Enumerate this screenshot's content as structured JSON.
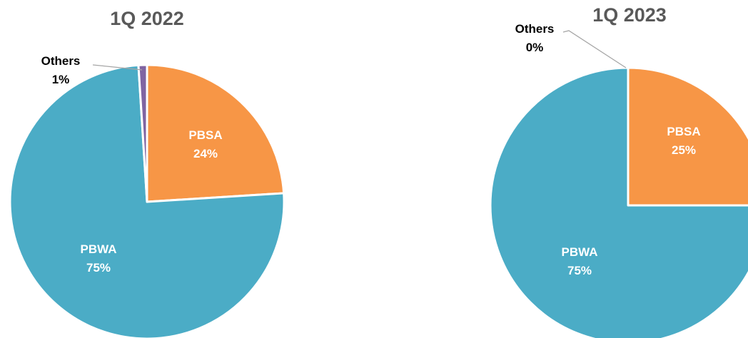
{
  "chart_data": [
    {
      "type": "pie",
      "title": "1Q 2022",
      "slices": [
        {
          "name": "PBSA",
          "value": 24,
          "label": "24%",
          "color": "#F79646"
        },
        {
          "name": "PBWA",
          "value": 75,
          "label": "75%",
          "color": "#4BACC6"
        },
        {
          "name": "Others",
          "value": 1,
          "label": "1%",
          "color": "#8064A2"
        }
      ],
      "legend": "none",
      "start_angle_deg": 0,
      "direction": "clockwise"
    },
    {
      "type": "pie",
      "title": "1Q 2023",
      "slices": [
        {
          "name": "PBSA",
          "value": 25,
          "label": "25%",
          "color": "#F79646"
        },
        {
          "name": "PBWA",
          "value": 75,
          "label": "75%",
          "color": "#4BACC6"
        },
        {
          "name": "Others",
          "value": 0,
          "label": "0%",
          "color": "#8064A2"
        }
      ],
      "legend": "none",
      "start_angle_deg": 0,
      "direction": "clockwise"
    }
  ]
}
